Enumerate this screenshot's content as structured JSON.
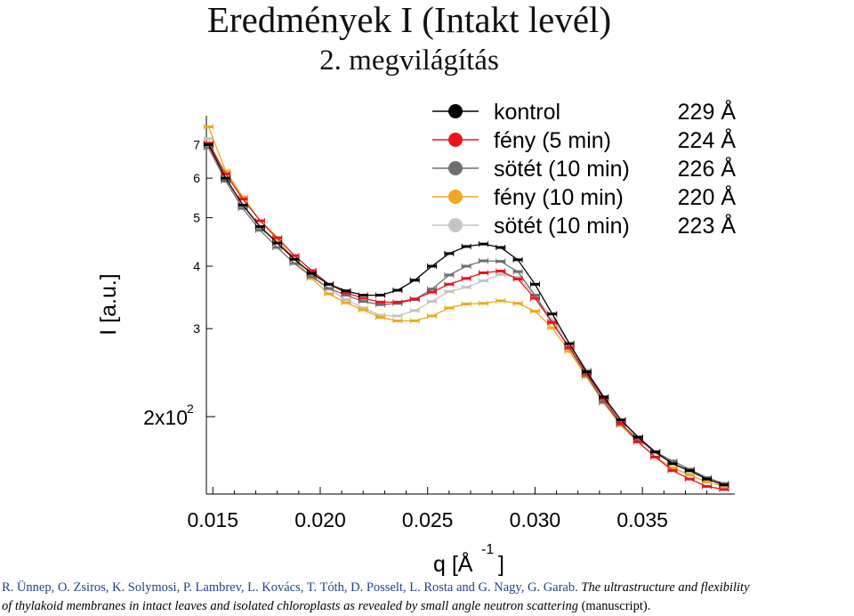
{
  "header": {
    "title": "Eredmények I (Intakt levél)",
    "subtitle": "2. megvilágítás"
  },
  "citation": {
    "authors": "R. Ünnep,  O. Zsiros, K. Solymosi, P. Lambrev, L. Kovács, T. Tóth, D. Posselt, L. Rosta and  G. Nagy, G. Garab.",
    "title_part1": " The ultrastructure and flexibility",
    "title_part2": "of thylakoid membranes in intact leaves and isolated chloroplasts as revealed by small angle neutron scattering",
    "note": " (manuscript)."
  },
  "chart_data": {
    "type": "line",
    "xlabel": "q [Å",
    "xlabel_exp": "-1",
    "xlabel_close": "]",
    "ylabel": "I [a.u.]",
    "yscale": "log",
    "xlim": [
      0.0147,
      0.0393
    ],
    "ylim": [
      140,
      800
    ],
    "x_ticks": [
      0.015,
      0.02,
      0.025,
      0.03,
      0.035
    ],
    "x_tick_labels": [
      "0.015",
      "0.020",
      "0.025",
      "0.030",
      "0.035"
    ],
    "y_ticks": [
      300,
      400,
      500,
      600,
      700
    ],
    "y_tick_labels": [
      "3",
      "4",
      "5",
      "6",
      "7"
    ],
    "y_base_tick": 200,
    "y_base_label": "2x10",
    "y_base_exp": "2",
    "legend_position": "top-right",
    "x": [
      0.0148,
      0.0156,
      0.0164,
      0.0172,
      0.018,
      0.0188,
      0.0196,
      0.0204,
      0.0212,
      0.022,
      0.0228,
      0.0236,
      0.0244,
      0.0252,
      0.026,
      0.0268,
      0.0276,
      0.0284,
      0.0292,
      0.03,
      0.0308,
      0.0316,
      0.0324,
      0.0332,
      0.034,
      0.0348,
      0.0356,
      0.0364,
      0.0372,
      0.038,
      0.0388
    ],
    "series": [
      {
        "name": "kontrol",
        "size": "229 Å",
        "color": "#000000",
        "values": [
          700,
          600,
          530,
          480,
          445,
          413,
          387,
          368,
          357,
          350,
          350,
          358,
          375,
          400,
          424,
          438,
          443,
          436,
          412,
          368,
          321,
          280,
          246,
          219,
          197,
          182,
          170,
          161,
          156,
          150,
          146
        ]
      },
      {
        "name": "fény  (5 min)",
        "size": "224 Å",
        "color": "#e8141c",
        "values": [
          705,
          612,
          545,
          493,
          456,
          420,
          392,
          368,
          354,
          345,
          339,
          339,
          344,
          355,
          368,
          378,
          388,
          391,
          377,
          345,
          309,
          275,
          244,
          217,
          194,
          178,
          166,
          156,
          150,
          145,
          143
        ]
      },
      {
        "name": "sötét (10 min)",
        "size": "226 Å",
        "color": "#6e6e6e",
        "values": [
          690,
          592,
          522,
          472,
          436,
          405,
          381,
          361,
          350,
          340,
          335,
          337,
          343,
          360,
          384,
          400,
          410,
          409,
          390,
          350,
          308,
          274,
          242,
          214,
          193,
          180,
          170,
          163,
          157,
          151,
          147
        ]
      },
      {
        "name": "fény  (10 min)",
        "size": "220 Å",
        "color": "#f0a81e",
        "values": [
          760,
          620,
          550,
          493,
          452,
          413,
          378,
          352,
          338,
          327,
          316,
          311,
          311,
          318,
          330,
          336,
          337,
          341,
          337,
          325,
          301,
          270,
          240,
          213,
          192,
          178,
          166,
          158,
          153,
          148,
          145
        ]
      },
      {
        "name": "sötét (10 min)",
        "size": "223 Å",
        "color": "#c4c4c4",
        "values": [
          720,
          600,
          530,
          478,
          445,
          413,
          386,
          360,
          343,
          330,
          319,
          318,
          326,
          340,
          356,
          363,
          374,
          385,
          380,
          350,
          313,
          280,
          248,
          219,
          196,
          181,
          169,
          161,
          155,
          150,
          146
        ]
      }
    ]
  }
}
